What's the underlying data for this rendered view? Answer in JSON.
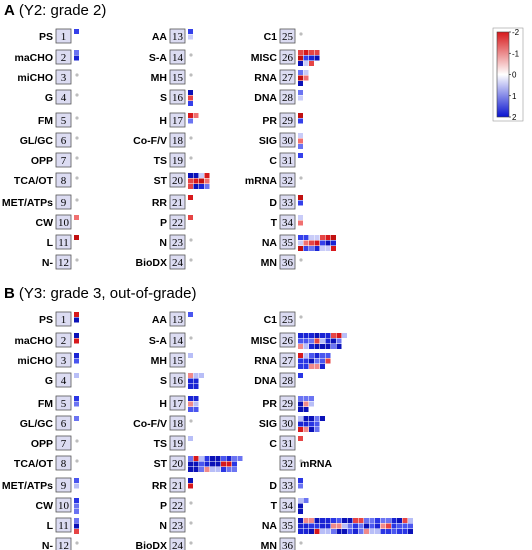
{
  "panels": [
    {
      "letter": "A",
      "title": "(Y2: grade 2)"
    },
    {
      "letter": "B",
      "title": "(Y3: grade 3, out-of-grade)"
    }
  ],
  "colorbar": {
    "ticks": [
      "-2",
      "-1",
      "0",
      "1",
      "2"
    ],
    "low_color": "#d7191c",
    "mid_color": "#ffffff",
    "high_color": "#0a14d0"
  },
  "categories": [
    {
      "id": 1,
      "label": "PS"
    },
    {
      "id": 2,
      "label": "maCHO"
    },
    {
      "id": 3,
      "label": "miCHO"
    },
    {
      "id": 4,
      "label": "G"
    },
    {
      "id": 5,
      "label": "FM"
    },
    {
      "id": 6,
      "label": "GL/GC"
    },
    {
      "id": 7,
      "label": "OPP"
    },
    {
      "id": 8,
      "label": "TCA/OT"
    },
    {
      "id": 9,
      "label": "MET/ATPs"
    },
    {
      "id": 10,
      "label": "CW"
    },
    {
      "id": 11,
      "label": "L"
    },
    {
      "id": 12,
      "label": "N-"
    },
    {
      "id": 13,
      "label": "AA"
    },
    {
      "id": 14,
      "label": "S-A"
    },
    {
      "id": 15,
      "label": "MH"
    },
    {
      "id": 16,
      "label": "S"
    },
    {
      "id": 17,
      "label": "H"
    },
    {
      "id": 18,
      "label": "Co-F/V"
    },
    {
      "id": 19,
      "label": "TS"
    },
    {
      "id": 20,
      "label": "ST"
    },
    {
      "id": 21,
      "label": "RR"
    },
    {
      "id": 22,
      "label": "P"
    },
    {
      "id": 23,
      "label": "N"
    },
    {
      "id": 24,
      "label": "BioDX"
    },
    {
      "id": 25,
      "label": "C1"
    },
    {
      "id": 26,
      "label": "MISC"
    },
    {
      "id": 27,
      "label": "RNA"
    },
    {
      "id": 28,
      "label": "DNA"
    },
    {
      "id": 29,
      "label": "PR"
    },
    {
      "id": 30,
      "label": "SIG"
    },
    {
      "id": 31,
      "label": "C"
    },
    {
      "id": 32,
      "label": "mRNA"
    },
    {
      "id": 33,
      "label": "D"
    },
    {
      "id": 34,
      "label": "T"
    },
    {
      "id": 35,
      "label": "NA"
    },
    {
      "id": 36,
      "label": "MN"
    }
  ],
  "chart_data": [
    {
      "type": "heatmap",
      "panel": "A",
      "title": "(Y2: grade 2)",
      "cells": {
        "1": [
          1,
          0
        ],
        "2": [
          2,
          3
        ],
        "3": [
          0,
          0
        ],
        "4": [
          0,
          0
        ],
        "5": [
          0,
          0
        ],
        "6": [
          0,
          0
        ],
        "7": [
          0,
          0
        ],
        "8": [
          0,
          0
        ],
        "9": [
          0,
          0
        ],
        "10": [
          1,
          1
        ],
        "11": [
          1,
          1
        ],
        "12": [
          0,
          0
        ],
        "13": [
          2,
          2
        ],
        "14": [
          0,
          0
        ],
        "15": [
          0,
          0
        ],
        "16": [
          3,
          3
        ],
        "17": [
          3,
          2
        ],
        "18": [
          0,
          0
        ],
        "19": [
          0,
          0
        ],
        "20": [
          12,
          3
        ],
        "21": [
          1,
          1
        ],
        "22": [
          1,
          1
        ],
        "23": [
          0,
          0
        ],
        "24": [
          0,
          0
        ],
        "25": [
          0,
          0
        ],
        "26": [
          11,
          3
        ],
        "27": [
          5,
          3
        ],
        "28": [
          2,
          2
        ],
        "29": [
          2,
          2
        ],
        "30": [
          3,
          3
        ],
        "31": [
          1,
          1
        ],
        "32": [
          0,
          0
        ],
        "33": [
          2,
          2
        ],
        "34": [
          2,
          2
        ],
        "35": [
          21,
          3
        ],
        "36": [
          0,
          0
        ]
      }
    },
    {
      "type": "heatmap",
      "panel": "B",
      "title": "(Y3: grade 3, out-of-grade)",
      "cells": {
        "1": [
          2,
          2
        ],
        "2": [
          2,
          3
        ],
        "3": [
          2,
          2
        ],
        "4": [
          1,
          1
        ],
        "5": [
          2,
          3
        ],
        "6": [
          1,
          1
        ],
        "7": [
          0,
          0
        ],
        "8": [
          0,
          0
        ],
        "9": [
          2,
          2
        ],
        "10": [
          3,
          3
        ],
        "11": [
          3,
          3
        ],
        "12": [
          0,
          0
        ],
        "13": [
          1,
          1
        ],
        "14": [
          0,
          0
        ],
        "15": [
          1,
          1
        ],
        "16": [
          7,
          3
        ],
        "17": [
          6,
          3
        ],
        "18": [
          0,
          0
        ],
        "19": [
          1,
          1
        ],
        "20": [
          28,
          3
        ],
        "21": [
          2,
          3
        ],
        "22": [
          0,
          0
        ],
        "23": [
          0,
          0
        ],
        "24": [
          0,
          0
        ],
        "25": [
          0,
          0
        ],
        "26": [
          25,
          3
        ],
        "27": [
          17,
          3
        ],
        "28": [
          1,
          2
        ],
        "29": [
          8,
          3
        ],
        "30": [
          13,
          3
        ],
        "31": [
          1,
          3
        ],
        "32": [
          0,
          0
        ],
        "33": [
          2,
          2
        ],
        "34": [
          4,
          3
        ],
        "35": [
          63,
          3
        ],
        "36": [
          0,
          0
        ]
      }
    }
  ]
}
